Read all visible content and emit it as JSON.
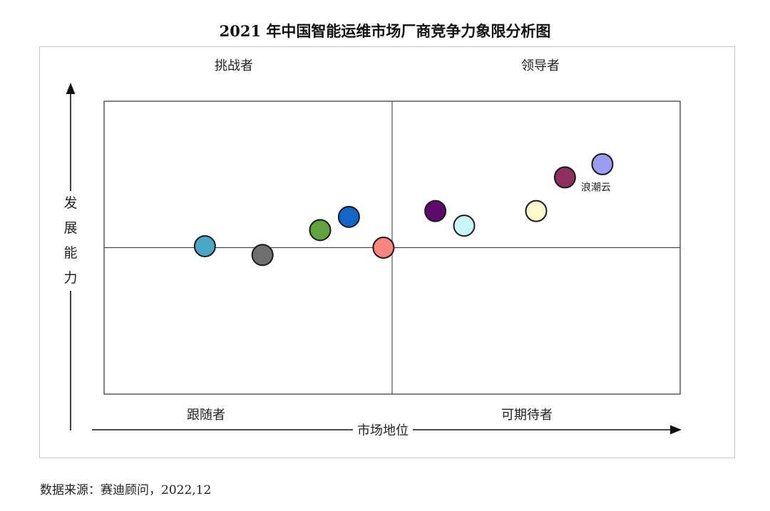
{
  "title": "2021 年中国智能运维市场厂商竞争力象限分析图",
  "quadrants": {
    "top_left": "挑战者",
    "top_right": "领导者",
    "bottom_left": "跟随者",
    "bottom_right": "可期待者"
  },
  "source": "数据来源：赛迪顾问，2022,12",
  "chart_data": {
    "type": "scatter",
    "title": "2021 年中国智能运维市场厂商竞争力象限分析图",
    "xlabel": "市场地位",
    "ylabel": "发展能力",
    "ylabel_chars": [
      "发",
      "展",
      "能",
      "力"
    ],
    "xlim": [
      0,
      100
    ],
    "ylim": [
      0,
      100
    ],
    "grid": false,
    "dividers": {
      "x": 50,
      "y": 50
    },
    "points": [
      {
        "x": 17.5,
        "y": 50.5,
        "color": "#4aa8c7",
        "label": ""
      },
      {
        "x": 27.5,
        "y": 47.5,
        "color": "#6f6f6f",
        "label": ""
      },
      {
        "x": 37.5,
        "y": 56.0,
        "color": "#5fa23e",
        "label": ""
      },
      {
        "x": 42.5,
        "y": 60.5,
        "color": "#1266c8",
        "label": ""
      },
      {
        "x": 48.5,
        "y": 50.0,
        "color": "#f78680",
        "label": ""
      },
      {
        "x": 57.5,
        "y": 62.5,
        "color": "#5d0a6b",
        "label": ""
      },
      {
        "x": 62.5,
        "y": 57.5,
        "color": "#c9f6f8",
        "label": ""
      },
      {
        "x": 75.0,
        "y": 62.5,
        "color": "#fbfbcf",
        "label": ""
      },
      {
        "x": 80.0,
        "y": 74.0,
        "color": "#8e2f5d",
        "label": ""
      },
      {
        "x": 86.5,
        "y": 78.5,
        "color": "#9a9cf2",
        "label": "浪潮云"
      }
    ]
  }
}
